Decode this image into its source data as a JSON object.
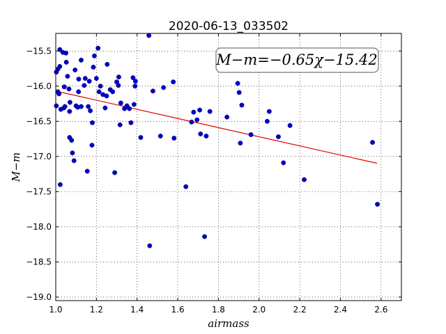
{
  "chart_data": {
    "type": "scatter",
    "title": "2020-06-13_033502",
    "xlabel": "airmass",
    "ylabel": "M−m",
    "annotation": "M−m=−0.65χ−15.42",
    "xlim": [
      1.0,
      2.7
    ],
    "ylim": [
      -19.05,
      -15.25
    ],
    "y_inverted": true,
    "grid": true,
    "x_ticks": [
      1.0,
      1.2,
      1.4,
      1.6,
      1.8,
      2.0,
      2.2,
      2.4,
      2.6
    ],
    "x_tick_labels": [
      "1.0",
      "1.2",
      "1.4",
      "1.6",
      "1.8",
      "2.0",
      "2.2",
      "2.4",
      "2.6"
    ],
    "y_ticks": [
      -15.5,
      -16.0,
      -16.5,
      -17.0,
      -17.5,
      -18.0,
      -18.5,
      -19.0
    ],
    "y_tick_labels": [
      "−15.5",
      "−16.0",
      "−16.5",
      "−17.0",
      "−17.5",
      "−18.0",
      "−18.5",
      "−19.0"
    ],
    "points_color": "#0000cc",
    "fit_color": "#dd0000",
    "fit": {
      "slope": -0.65,
      "intercept": -15.42,
      "x_range": [
        1.0,
        2.58
      ]
    },
    "points": [
      [
        1.003,
        -16.28
      ],
      [
        1.003,
        -15.8
      ],
      [
        1.01,
        -15.76
      ],
      [
        1.01,
        -16.08
      ],
      [
        1.016,
        -16.11
      ],
      [
        1.02,
        -15.72
      ],
      [
        1.02,
        -15.48
      ],
      [
        1.022,
        -17.4
      ],
      [
        1.025,
        -16.33
      ],
      [
        1.035,
        -15.52
      ],
      [
        1.04,
        -16.31
      ],
      [
        1.042,
        -16.01
      ],
      [
        1.045,
        -16.29
      ],
      [
        1.05,
        -15.53
      ],
      [
        1.052,
        -15.66
      ],
      [
        1.058,
        -15.86
      ],
      [
        1.065,
        -16.04
      ],
      [
        1.068,
        -16.36
      ],
      [
        1.068,
        -16.73
      ],
      [
        1.07,
        -16.23
      ],
      [
        1.078,
        -16.77
      ],
      [
        1.082,
        -16.95
      ],
      [
        1.09,
        -17.06
      ],
      [
        1.095,
        -15.77
      ],
      [
        1.1,
        -16.28
      ],
      [
        1.108,
        -16.3
      ],
      [
        1.112,
        -16.08
      ],
      [
        1.113,
        -15.9
      ],
      [
        1.125,
        -15.63
      ],
      [
        1.125,
        -16.29
      ],
      [
        1.14,
        -15.99
      ],
      [
        1.145,
        -15.89
      ],
      [
        1.155,
        -17.21
      ],
      [
        1.16,
        -16.29
      ],
      [
        1.165,
        -15.93
      ],
      [
        1.17,
        -16.35
      ],
      [
        1.178,
        -16.84
      ],
      [
        1.18,
        -16.52
      ],
      [
        1.185,
        -15.73
      ],
      [
        1.19,
        -15.57
      ],
      [
        1.2,
        -15.89
      ],
      [
        1.208,
        -15.46
      ],
      [
        1.213,
        -16.08
      ],
      [
        1.22,
        -16.0
      ],
      [
        1.232,
        -16.12
      ],
      [
        1.243,
        -16.31
      ],
      [
        1.253,
        -15.69
      ],
      [
        1.25,
        -16.14
      ],
      [
        1.268,
        -16.05
      ],
      [
        1.28,
        -16.08
      ],
      [
        1.29,
        -17.23
      ],
      [
        1.3,
        -15.94
      ],
      [
        1.308,
        -15.99
      ],
      [
        1.31,
        -15.87
      ],
      [
        1.316,
        -16.55
      ],
      [
        1.32,
        -16.24
      ],
      [
        1.338,
        -16.32
      ],
      [
        1.35,
        -16.28
      ],
      [
        1.362,
        -16.32
      ],
      [
        1.37,
        -16.52
      ],
      [
        1.38,
        -15.88
      ],
      [
        1.385,
        -16.26
      ],
      [
        1.39,
        -16.0
      ],
      [
        1.392,
        -15.93
      ],
      [
        1.418,
        -16.73
      ],
      [
        1.458,
        -15.28
      ],
      [
        1.462,
        -18.27
      ],
      [
        1.478,
        -16.07
      ],
      [
        1.515,
        -16.71
      ],
      [
        1.53,
        -16.02
      ],
      [
        1.578,
        -15.94
      ],
      [
        1.582,
        -16.74
      ],
      [
        1.64,
        -17.43
      ],
      [
        1.668,
        -16.51
      ],
      [
        1.678,
        -16.37
      ],
      [
        1.695,
        -16.48
      ],
      [
        1.708,
        -16.34
      ],
      [
        1.712,
        -16.68
      ],
      [
        1.732,
        -18.14
      ],
      [
        1.74,
        -16.71
      ],
      [
        1.758,
        -16.36
      ],
      [
        1.842,
        -16.44
      ],
      [
        1.895,
        -15.96
      ],
      [
        1.902,
        -16.09
      ],
      [
        1.908,
        -16.81
      ],
      [
        1.915,
        -16.27
      ],
      [
        1.96,
        -16.69
      ],
      [
        2.04,
        -16.5
      ],
      [
        2.05,
        -16.36
      ],
      [
        2.095,
        -16.72
      ],
      [
        2.12,
        -17.09
      ],
      [
        2.152,
        -16.56
      ],
      [
        2.222,
        -17.33
      ],
      [
        2.558,
        -16.8
      ],
      [
        2.582,
        -17.68
      ]
    ]
  }
}
